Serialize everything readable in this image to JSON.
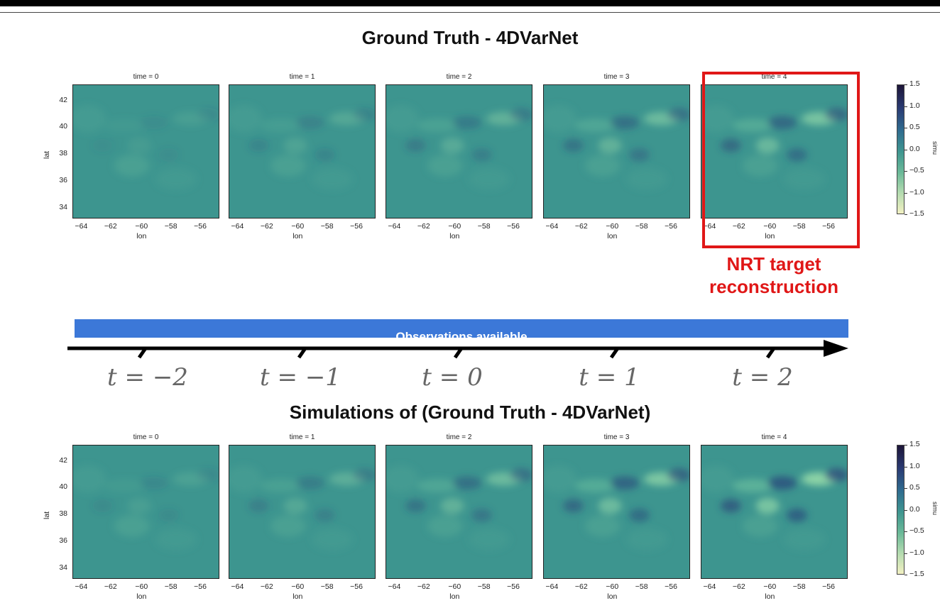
{
  "top_section": {
    "title": "Ground Truth - 4DVarNet",
    "panels": [
      {
        "title": "time = 0"
      },
      {
        "title": "time = 1"
      },
      {
        "title": "time = 2"
      },
      {
        "title": "time = 3"
      },
      {
        "title": "time = 4"
      }
    ],
    "xlabel": "lon",
    "ylabel": "lat",
    "x_ticks": [
      "−64",
      "−62",
      "−60",
      "−58",
      "−56"
    ],
    "y_ticks": [
      "42",
      "40",
      "38",
      "36",
      "34"
    ],
    "colorbar_ticks": [
      "1.5",
      "1.0",
      "0.5",
      "0.0",
      "−0.5",
      "−1.0",
      "−1.5"
    ],
    "colorbar_label": "simu"
  },
  "highlight": {
    "label_line1": "NRT target",
    "label_line2": "reconstruction",
    "color": "#e01717"
  },
  "observations_bar": {
    "label": "Observations available",
    "color": "#3c78d8"
  },
  "timeline": {
    "labels": [
      "t = −2",
      "t = −1",
      "t = 0",
      "t = 1",
      "t = 2"
    ]
  },
  "bottom_section": {
    "title": "Simulations of (Ground Truth - 4DVarNet)",
    "panels": [
      {
        "title": "time = 0"
      },
      {
        "title": "time = 1"
      },
      {
        "title": "time = 2"
      },
      {
        "title": "time = 3"
      },
      {
        "title": "time = 4"
      }
    ],
    "xlabel": "lon",
    "ylabel": "lat",
    "x_ticks": [
      "−64",
      "−62",
      "−60",
      "−58",
      "−56"
    ],
    "y_ticks": [
      "42",
      "40",
      "38",
      "36",
      "34"
    ],
    "colorbar_ticks": [
      "1.5",
      "1.0",
      "0.5",
      "0.0",
      "−0.5",
      "−1.0",
      "−1.5"
    ],
    "colorbar_label": "simu"
  }
}
